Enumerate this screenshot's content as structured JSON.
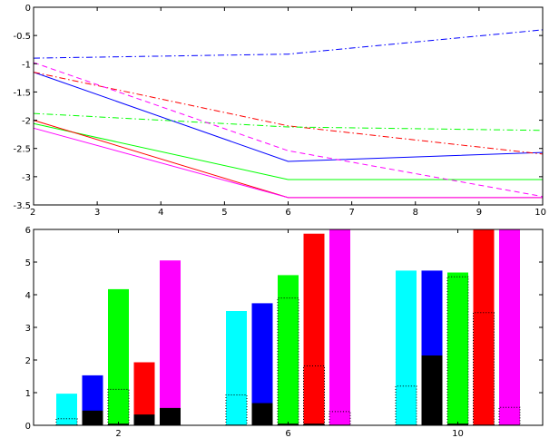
{
  "chart_data": [
    {
      "type": "line",
      "title": "",
      "xlabel": "",
      "ylabel": "",
      "xlim": [
        2,
        10
      ],
      "ylim": [
        -3.5,
        0
      ],
      "xticks": [
        2,
        3,
        4,
        5,
        6,
        7,
        8,
        9,
        10
      ],
      "xtick_labels": [
        "2",
        "3",
        "4",
        "5",
        "6",
        "7",
        "8",
        "9",
        "10"
      ],
      "yticks": [
        0,
        -0.5,
        -1,
        -1.5,
        -2,
        -2.5,
        -3,
        -3.5
      ],
      "ytick_labels": [
        "0",
        "-0.5",
        "-1",
        "-1.5",
        "-2",
        "-2.5",
        "-3",
        "-3.5"
      ],
      "grid": false,
      "series": [
        {
          "color": "#0000ff",
          "style": "solid",
          "x": [
            2,
            6,
            10
          ],
          "y": [
            -1.15,
            -2.73,
            -2.57
          ]
        },
        {
          "color": "#00ff00",
          "style": "solid",
          "x": [
            2,
            6,
            10
          ],
          "y": [
            -2.06,
            -3.05,
            -3.05
          ]
        },
        {
          "color": "#ff0000",
          "style": "solid",
          "x": [
            2,
            6,
            10
          ],
          "y": [
            -2.0,
            -3.37,
            -3.37
          ]
        },
        {
          "color": "#ff00ff",
          "style": "solid",
          "x": [
            2,
            6,
            10
          ],
          "y": [
            -2.14,
            -3.37,
            -3.37
          ]
        },
        {
          "color": "#0000ff",
          "style": "dashdot",
          "x": [
            2,
            6,
            10
          ],
          "y": [
            -0.9,
            -0.83,
            -0.4
          ]
        },
        {
          "color": "#ff0000",
          "style": "dashdot",
          "x": [
            2,
            6,
            10
          ],
          "y": [
            -1.15,
            -2.1,
            -2.6
          ]
        },
        {
          "color": "#00ff00",
          "style": "dashdot",
          "x": [
            2,
            6,
            10
          ],
          "y": [
            -1.88,
            -2.12,
            -2.18
          ]
        },
        {
          "color": "#ff00ff",
          "style": "dashed",
          "x": [
            2,
            6,
            10
          ],
          "y": [
            -0.98,
            -2.54,
            -3.35
          ]
        }
      ]
    },
    {
      "type": "bar",
      "title": "",
      "xlabel": "",
      "ylabel": "",
      "categories": [
        "2",
        "6",
        "10"
      ],
      "ylim": [
        0,
        6
      ],
      "yticks": [
        0,
        1,
        2,
        3,
        4,
        5,
        6
      ],
      "ytick_labels": [
        "0",
        "1",
        "2",
        "3",
        "4",
        "5",
        "6"
      ],
      "grid": false,
      "series": [
        {
          "color": "#00ffff",
          "values": [
            0.97,
            3.5,
            4.74
          ],
          "black_base": [
            0.02,
            0.02,
            0.02
          ],
          "dotted_level": [
            0.2,
            0.93,
            1.2
          ]
        },
        {
          "color": "#0000ff",
          "values": [
            1.53,
            3.74,
            4.74
          ],
          "black_base": [
            0.45,
            0.68,
            2.14
          ],
          "dotted_level": [
            null,
            null,
            null
          ]
        },
        {
          "color": "#00ff00",
          "values": [
            4.17,
            4.6,
            4.68
          ],
          "black_base": [
            0.05,
            0.05,
            0.05
          ],
          "dotted_level": [
            1.1,
            3.9,
            4.55
          ]
        },
        {
          "color": "#ff0000",
          "values": [
            1.93,
            5.87,
            6.0
          ],
          "black_base": [
            0.33,
            0.05,
            0.02
          ],
          "dotted_level": [
            null,
            1.82,
            3.45
          ]
        },
        {
          "color": "#ff00ff",
          "values": [
            5.05,
            6.0,
            6.0
          ],
          "black_base": [
            0.53,
            0.02,
            0.02
          ],
          "dotted_level": [
            null,
            0.42,
            0.55
          ]
        }
      ]
    }
  ]
}
